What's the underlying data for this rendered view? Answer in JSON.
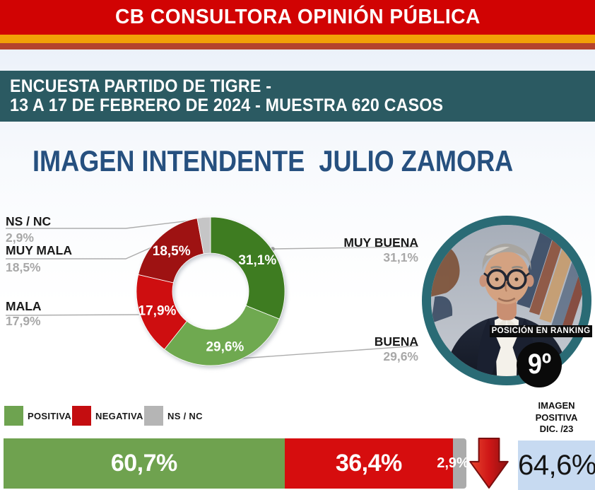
{
  "header": {
    "title": "CB CONSULTORA OPINIÓN PÚBLICA"
  },
  "banner": {
    "line1": "ENCUESTA PARTIDO DE TIGRE -",
    "line2": "13 A 17 DE FEBRERO DE 2024 - MUESTRA 620 CASOS"
  },
  "page_title": "IMAGEN INTENDENTE  JULIO ZAMORA",
  "chart_data": [
    {
      "type": "pie",
      "title": "IMAGEN INTENDENTE JULIO ZAMORA",
      "unit": "%",
      "start_angle": 0,
      "direction": "clockwise",
      "segments": [
        {
          "label": "MUY BUENA",
          "value": 31.1,
          "display": "31,1%",
          "color": "#3e7c21"
        },
        {
          "label": "BUENA",
          "value": 29.6,
          "display": "29,6%",
          "color": "#6fa950"
        },
        {
          "label": "MALA",
          "value": 17.9,
          "display": "17,9%",
          "color": "#ce0e10"
        },
        {
          "label": "MUY MALA",
          "value": 18.5,
          "display": "18,5%",
          "color": "#9e1212"
        },
        {
          "label": "NS / NC",
          "value": 2.9,
          "display": "2,9%",
          "color": "#c5c5c6"
        }
      ]
    },
    {
      "type": "bar",
      "stacked": true,
      "categories": [
        "POSITIVA",
        "NEGATIVA",
        "NS / NC"
      ],
      "values": [
        60.7,
        36.4,
        2.9
      ],
      "displays": [
        "60,7%",
        "36,4%",
        "2,9%"
      ],
      "colors": [
        "#6fa24f",
        "#d60d0e",
        "#ababab"
      ]
    }
  ],
  "legend": {
    "items": [
      {
        "label": "POSITIVA",
        "color": "#6ea350"
      },
      {
        "label": "NEGATIVA",
        "color": "#c40d10"
      },
      {
        "label": "NS / NC",
        "color": "#b5b5b5"
      }
    ]
  },
  "ranking": {
    "label": "POSICIÓN EN RANKING",
    "value": "9º"
  },
  "comparison": {
    "title_lines": [
      "IMAGEN",
      "POSITIVA",
      "DIC. /23"
    ],
    "value": "64,6%",
    "trend": "down",
    "box_color": "#c7daf1"
  },
  "colors": {
    "header_red": "#d10303",
    "stripe_orange": "#f2a007",
    "stripe_dark_red": "#b4432d",
    "banner_teal": "#2b5a62",
    "photo_ring_teal": "#2a6b75",
    "title_blue": "#26507f",
    "arrow_red": "#c01414"
  }
}
